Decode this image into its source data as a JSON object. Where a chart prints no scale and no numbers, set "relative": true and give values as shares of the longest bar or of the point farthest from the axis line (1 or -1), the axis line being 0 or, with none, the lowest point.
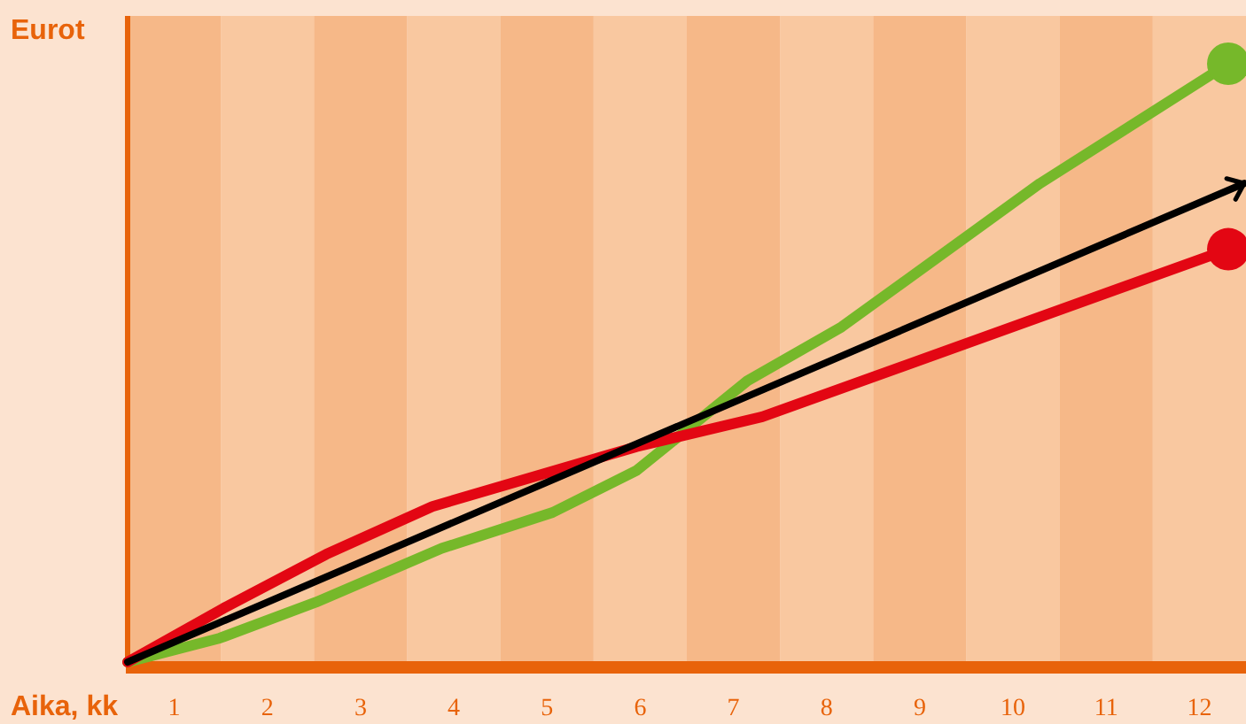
{
  "chart_data": {
    "type": "line",
    "relative": true,
    "xlabel": "Aika, kk",
    "ylabel": "Eurot",
    "xlim": [
      0.5,
      12.5
    ],
    "xticks": [
      1,
      2,
      3,
      4,
      5,
      6,
      7,
      8,
      9,
      10,
      11,
      12
    ],
    "grid": false,
    "bands": [
      {
        "axis": "x",
        "from": 0.5,
        "to": 1.5,
        "color": "#f6b888"
      },
      {
        "axis": "x",
        "from": 1.5,
        "to": 2.5,
        "color": "#f9c8a0"
      },
      {
        "axis": "x",
        "from": 2.5,
        "to": 3.5,
        "color": "#f6b888"
      },
      {
        "axis": "x",
        "from": 3.5,
        "to": 4.5,
        "color": "#f9c8a0"
      },
      {
        "axis": "x",
        "from": 4.5,
        "to": 5.5,
        "color": "#f6b888"
      },
      {
        "axis": "x",
        "from": 5.5,
        "to": 6.5,
        "color": "#f9c8a0"
      },
      {
        "axis": "x",
        "from": 6.5,
        "to": 7.5,
        "color": "#f6b888"
      },
      {
        "axis": "x",
        "from": 7.5,
        "to": 8.5,
        "color": "#f9c8a0"
      },
      {
        "axis": "x",
        "from": 8.5,
        "to": 9.5,
        "color": "#f6b888"
      },
      {
        "axis": "x",
        "from": 9.5,
        "to": 10.5,
        "color": "#f9c8a0"
      },
      {
        "axis": "x",
        "from": 10.5,
        "to": 11.5,
        "color": "#f6b888"
      },
      {
        "axis": "x",
        "from": 11.5,
        "to": 12.5,
        "color": "#f9c8a0"
      }
    ],
    "series": [
      {
        "color": "#76b82a",
        "x": [
          0.5,
          1.49,
          2.52,
          3.87,
          5.06,
          5.96,
          7.15,
          8.16,
          10.29,
          12.31
        ],
        "values": [
          0,
          0.04,
          0.1,
          0.19,
          0.25,
          0.32,
          0.47,
          0.56,
          0.8,
          1
        ]
      },
      {
        "color": "#e30613",
        "x": [
          0.5,
          1.53,
          2.63,
          3.77,
          5.96,
          7.31,
          12.31
        ],
        "values": [
          0,
          0.09,
          0.18,
          0.26,
          0.36,
          0.41,
          0.69
        ]
      },
      {
        "color": "#000000",
        "x": [
          0.5,
          12.48
        ],
        "values": [
          0,
          0.8
        ]
      },
      {
        "type": "scatter",
        "color": "#76b82a",
        "x": [
          12.31
        ],
        "values": [
          1
        ]
      },
      {
        "type": "scatter",
        "color": "#e30613",
        "x": [
          12.31
        ],
        "values": [
          0.69
        ]
      }
    ]
  }
}
